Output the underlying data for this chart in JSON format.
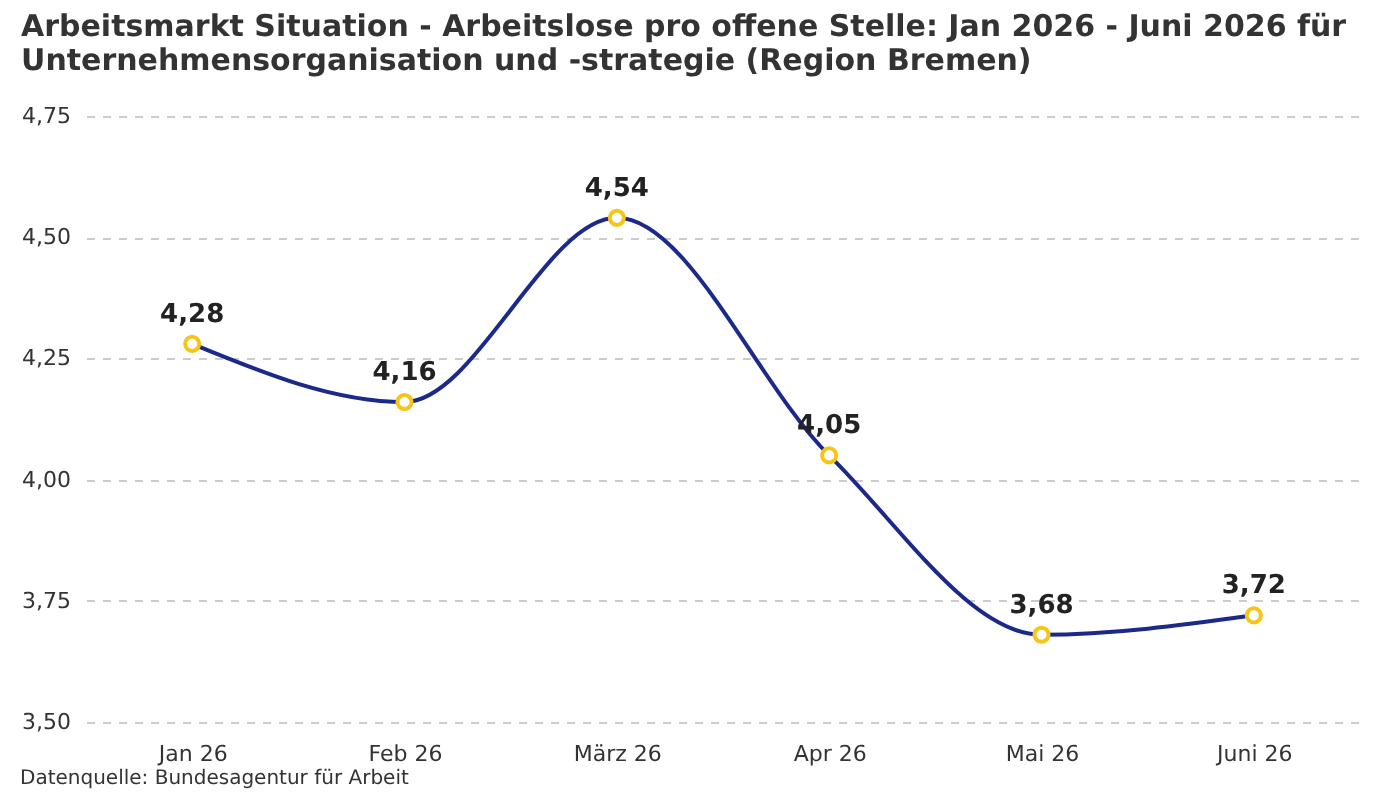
{
  "chart_data": {
    "type": "line",
    "title": "Arbeitsmarkt Situation - Arbeitslose pro offene Stelle: Jan 2026 - Juni 2026 für Unternehmensorganisation und -strategie (Region Bremen)",
    "categories": [
      "Jan 26",
      "Feb 26",
      "März 26",
      "Apr 26",
      "Mai 26",
      "Juni 26"
    ],
    "series": [
      {
        "color": "#1b2a8a",
        "values": [
          4.28,
          4.16,
          4.54,
          4.05,
          3.68,
          3.72
        ],
        "value_labels": [
          "4,28",
          "4,16",
          "4,54",
          "4,05",
          "3,68",
          "3,72"
        ]
      }
    ],
    "ylim": [
      3.5,
      4.75
    ],
    "yticks": [
      {
        "value": 3.5,
        "label": "3,50"
      },
      {
        "value": 3.75,
        "label": "3,75"
      },
      {
        "value": 4,
        "label": "4,00"
      },
      {
        "value": 4.25,
        "label": "4,25"
      },
      {
        "value": 4.5,
        "label": "4,50"
      },
      {
        "value": 4.75,
        "label": "4,75"
      }
    ],
    "grid": "y",
    "marker": "circle",
    "line_style": "solid",
    "annotations": [
      "Datenquelle: Bundesagentur für Arbeit"
    ]
  }
}
